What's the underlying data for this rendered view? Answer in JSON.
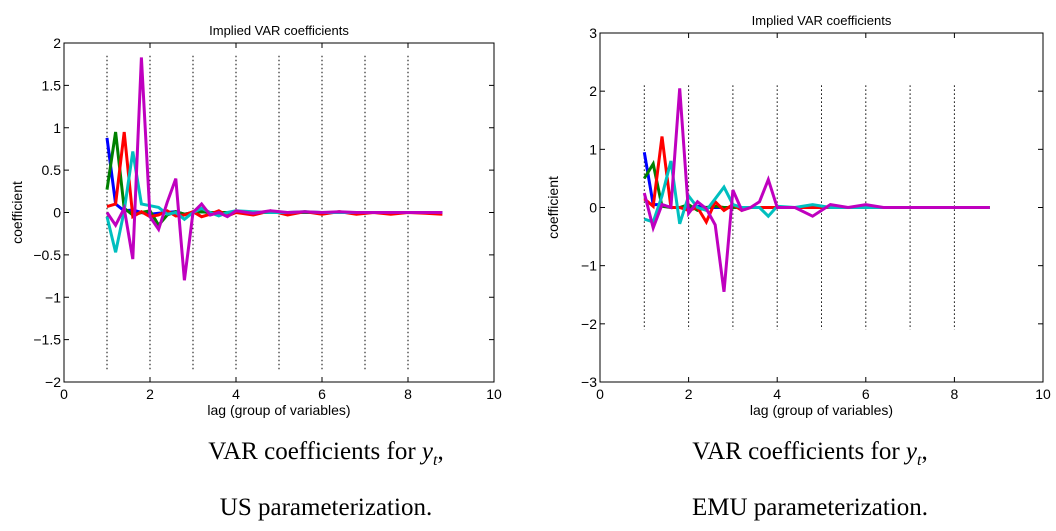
{
  "chart_data": [
    {
      "type": "line",
      "title": "Implied VAR coefficients",
      "xlabel": "lag (group of variables)",
      "ylabel": "coefficient",
      "xlim": [
        0,
        10
      ],
      "ylim": [
        -2,
        2
      ],
      "xticks": [
        "0",
        "2",
        "4",
        "6",
        "8",
        "10"
      ],
      "yticks": [
        "2",
        "1.5",
        "1",
        "0.5",
        "0",
        "−0.5",
        "−1",
        "−1.5",
        "−2"
      ],
      "ytick_values": [
        2,
        1.5,
        1,
        0.5,
        0,
        -0.5,
        -1,
        -1.5,
        -2
      ],
      "guides": {
        "x": [
          1,
          2,
          3,
          4,
          5,
          6,
          7,
          8
        ],
        "y_range": [
          -1.85,
          1.85
        ]
      },
      "x": [
        1.0,
        1.2,
        1.4,
        1.6,
        1.8,
        2.0,
        2.2,
        2.4,
        2.6,
        2.8,
        3.0,
        3.2,
        3.4,
        3.6,
        3.8,
        4.0,
        4.4,
        4.8,
        5.2,
        5.6,
        6.0,
        6.4,
        6.8,
        7.2,
        7.6,
        8.0,
        8.4,
        8.8
      ],
      "series": [
        {
          "color": "#0000ff",
          "values": [
            0.88,
            0.1,
            0.02,
            0.03,
            0.0,
            -0.02,
            -0.01,
            0.0,
            0.01,
            -0.02,
            0.0,
            0.01,
            0.0,
            -0.01,
            0.0,
            0.0,
            0.0,
            0.0,
            0.0,
            0.0,
            0.0,
            0.0,
            0.0,
            0.0,
            0.0,
            0.0,
            0.0,
            0.0
          ]
        },
        {
          "color": "#008000",
          "values": [
            0.27,
            0.95,
            0.05,
            -0.03,
            0.0,
            0.02,
            -0.15,
            -0.03,
            0.01,
            -0.02,
            0.0,
            0.01,
            0.0,
            0.0,
            0.0,
            0.0,
            0.0,
            0.0,
            0.0,
            0.0,
            0.0,
            0.0,
            0.0,
            0.0,
            0.0,
            0.0,
            0.0,
            0.0
          ]
        },
        {
          "color": "#ff0000",
          "values": [
            0.07,
            0.1,
            0.95,
            -0.05,
            0.01,
            -0.05,
            -0.03,
            0.02,
            -0.04,
            -0.03,
            0.01,
            -0.05,
            -0.02,
            0.02,
            -0.04,
            0.0,
            -0.03,
            0.02,
            -0.03,
            0.01,
            -0.02,
            0.01,
            -0.02,
            0.0,
            -0.02,
            0.0,
            -0.01,
            -0.02
          ]
        },
        {
          "color": "#00bfbf",
          "values": [
            -0.05,
            -0.47,
            0.02,
            0.72,
            0.1,
            0.08,
            0.06,
            -0.02,
            0.0,
            -0.08,
            0.0,
            0.05,
            0.0,
            -0.04,
            0.0,
            0.02,
            0.01,
            0.0,
            0.0,
            0.01,
            0.0,
            0.0,
            0.0,
            0.0,
            0.0,
            0.0,
            0.0,
            0.0
          ]
        },
        {
          "color": "#bf00bf",
          "values": [
            0.0,
            -0.15,
            0.05,
            -0.55,
            1.83,
            -0.05,
            -0.2,
            0.12,
            0.4,
            -0.8,
            0.0,
            0.1,
            -0.03,
            0.0,
            -0.05,
            0.02,
            -0.01,
            0.02,
            0.0,
            0.01,
            0.0,
            0.01,
            0.0,
            0.0,
            0.0,
            0.0,
            0.0,
            0.0
          ]
        }
      ]
    },
    {
      "type": "line",
      "title": "Implied VAR coefficients",
      "xlabel": "lag (group of variables)",
      "ylabel": "coefficient",
      "xlim": [
        0,
        10
      ],
      "ylim": [
        -3,
        3
      ],
      "xticks": [
        "0",
        "2",
        "4",
        "6",
        "8",
        "10"
      ],
      "yticks": [
        "3",
        "2",
        "1",
        "0",
        "−1",
        "−2",
        "−3"
      ],
      "ytick_values": [
        3,
        2,
        1,
        0,
        -1,
        -2,
        -3
      ],
      "guides": {
        "x": [
          1,
          2,
          3,
          4,
          5,
          6,
          7,
          8
        ],
        "y_range": [
          -2.1,
          2.1
        ]
      },
      "x": [
        1.0,
        1.2,
        1.4,
        1.6,
        1.8,
        2.0,
        2.2,
        2.4,
        2.6,
        2.8,
        3.0,
        3.2,
        3.4,
        3.6,
        3.8,
        4.0,
        4.4,
        4.8,
        5.2,
        5.6,
        6.0,
        6.4,
        6.8,
        7.2,
        7.6,
        8.0,
        8.4,
        8.8
      ],
      "series": [
        {
          "color": "#0000ff",
          "values": [
            0.95,
            0.05,
            0.05,
            0.0,
            0.0,
            0.0,
            0.02,
            0.0,
            0.0,
            0.0,
            0.0,
            0.0,
            0.0,
            0.0,
            0.0,
            0.0,
            0.0,
            0.0,
            0.0,
            0.0,
            0.0,
            0.0,
            0.0,
            0.0,
            0.0,
            0.0,
            0.0,
            0.0
          ]
        },
        {
          "color": "#008000",
          "values": [
            0.5,
            0.75,
            0.02,
            0.0,
            0.0,
            0.05,
            -0.05,
            0.0,
            0.02,
            0.0,
            0.0,
            0.0,
            0.0,
            0.0,
            0.0,
            0.0,
            0.0,
            0.0,
            0.0,
            0.0,
            0.0,
            0.0,
            0.0,
            0.0,
            0.0,
            0.0,
            0.0,
            0.0
          ]
        },
        {
          "color": "#ff0000",
          "values": [
            0.15,
            0.02,
            1.22,
            0.0,
            0.0,
            -0.05,
            0.0,
            -0.25,
            0.1,
            -0.05,
            0.05,
            -0.05,
            0.0,
            0.0,
            0.0,
            0.0,
            0.0,
            0.0,
            0.0,
            0.0,
            0.0,
            0.0,
            0.0,
            0.0,
            0.0,
            0.0,
            0.0,
            0.0
          ]
        },
        {
          "color": "#00bfbf",
          "values": [
            -0.2,
            -0.25,
            0.2,
            0.8,
            -0.28,
            0.2,
            0.0,
            -0.05,
            0.15,
            0.35,
            0.05,
            0.0,
            0.0,
            0.0,
            -0.15,
            0.02,
            0.0,
            0.05,
            0.0,
            0.0,
            0.0,
            0.0,
            0.0,
            0.0,
            0.0,
            0.0,
            0.0,
            0.0
          ]
        },
        {
          "color": "#bf00bf",
          "values": [
            0.25,
            -0.35,
            0.05,
            0.0,
            2.05,
            -0.1,
            0.1,
            -0.02,
            -0.3,
            -1.45,
            0.3,
            -0.05,
            0.0,
            0.1,
            0.48,
            0.0,
            0.0,
            -0.15,
            0.05,
            0.0,
            0.05,
            0.0,
            0.0,
            0.0,
            0.0,
            0.0,
            0.0,
            0.0
          ]
        }
      ]
    }
  ],
  "captions": [
    {
      "line1": "VAR coefficients for ",
      "var": "y",
      "sub": "t",
      "comma": ",",
      "line2": "US parameterization."
    },
    {
      "line1": "VAR coefficients for ",
      "var": "y",
      "sub": "t",
      "comma": ",",
      "line2": "EMU parameterization."
    }
  ]
}
